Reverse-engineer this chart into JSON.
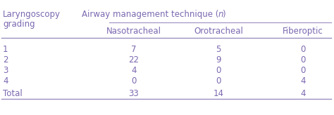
{
  "col1_header": "Nasotracheal",
  "col2_header": "Orotracheal",
  "col3_header": "Fiberoptic",
  "group_header_pre": "Airway management technique (",
  "group_header_n": "n",
  "group_header_post": ")",
  "left_header_line1": "Laryngoscopy",
  "left_header_line2": "grading",
  "col1_values": [
    "7",
    "22",
    "4",
    "0",
    "33"
  ],
  "col2_values": [
    "5",
    "9",
    "0",
    "0",
    "14"
  ],
  "col3_values": [
    "0",
    "0",
    "0",
    "4",
    "4"
  ],
  "row_labels": [
    "1",
    "2",
    "3",
    "4",
    "Total"
  ],
  "text_color": "#7b68b0",
  "line_color": "#9b8fc0",
  "bg_color": "#ffffff",
  "font_size": 8.5
}
